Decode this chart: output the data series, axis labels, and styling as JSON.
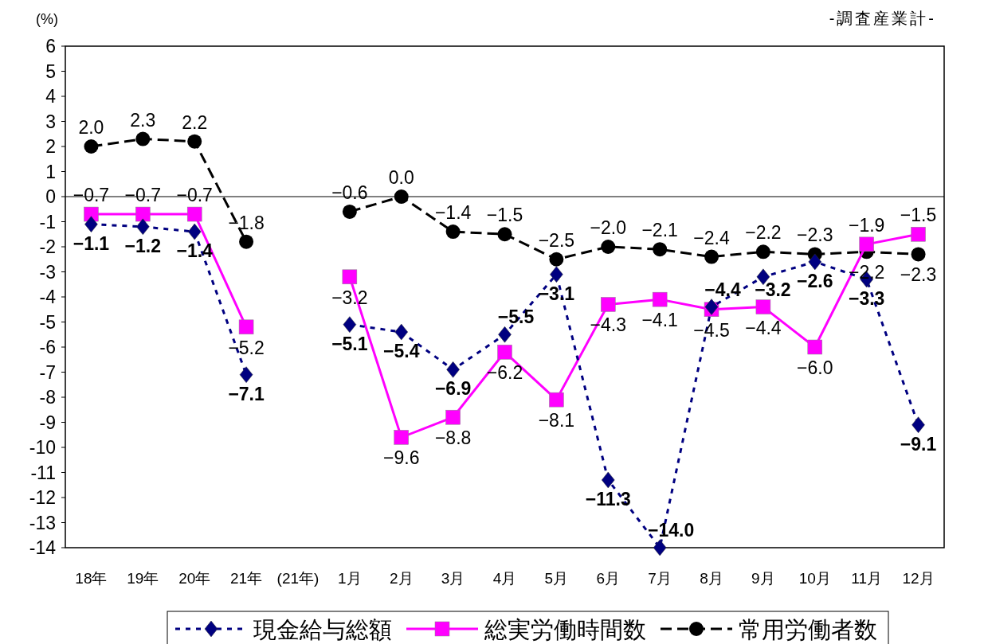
{
  "chart_data": {
    "type": "line",
    "title": "-調査産業計-",
    "ylabel": "(%)",
    "categories": [
      "18年",
      "19年",
      "20年",
      "21年",
      "(21年)",
      "1月",
      "2月",
      "3月",
      "4月",
      "5月",
      "6月",
      "7月",
      "8月",
      "9月",
      "10月",
      "11月",
      "12月"
    ],
    "series": [
      {
        "name": "現金給与総額",
        "color": "#000080",
        "marker": "diamond",
        "line_style": "dotted",
        "values": [
          -1.1,
          -1.2,
          -1.4,
          -7.1,
          null,
          -5.1,
          -5.4,
          -6.9,
          -5.5,
          -3.1,
          -11.3,
          -14.0,
          -4.4,
          -3.2,
          -2.6,
          -3.3,
          -9.1
        ],
        "value_labels": [
          "−1.1",
          "−1.2",
          "−1.4",
          "−7.1",
          null,
          "−5.1",
          "−5.4",
          "−6.9",
          "−5.5",
          "−3.1",
          "−11.3",
          "−14.0",
          "−4.4",
          "−3.2",
          "−2.6",
          "−3.3",
          "−9.1"
        ]
      },
      {
        "name": "総実労働時間数",
        "color": "#ff00ff",
        "marker": "square",
        "line_style": "solid",
        "values": [
          -0.7,
          -0.7,
          -0.7,
          -5.2,
          null,
          -3.2,
          -9.6,
          -8.8,
          -6.2,
          -8.1,
          -4.3,
          -4.1,
          -4.5,
          -4.4,
          -6.0,
          -1.9,
          -1.5
        ],
        "value_labels": [
          "−0.7",
          "−0.7",
          "−0.7",
          "−5.2",
          null,
          "−3.2",
          "−9.6",
          "−8.8",
          "−6.2",
          "−8.1",
          "−4.3",
          "−4.1",
          "−4.5",
          "−4.4",
          "−6.0",
          "−1.9",
          "−1.5"
        ]
      },
      {
        "name": "常用労働者数",
        "color": "#000000",
        "marker": "circle",
        "line_style": "dashed",
        "values": [
          2.0,
          2.3,
          2.2,
          -1.8,
          null,
          -0.6,
          0.0,
          -1.4,
          -1.5,
          -2.5,
          -2.0,
          -2.1,
          -2.4,
          -2.2,
          -2.3,
          -2.2,
          -2.3
        ],
        "value_labels": [
          "2.0",
          "2.3",
          "2.2",
          "−1.8",
          null,
          "−0.6",
          "0.0",
          "−1.4",
          "−1.5",
          "−2.5",
          "−2.0",
          "−2.1",
          "−2.4",
          "−2.2",
          "−2.3",
          "−2.2",
          "−2.3"
        ]
      }
    ],
    "ylim": [
      -14,
      6
    ],
    "yticks": [
      -14,
      -13,
      -12,
      -11,
      -10,
      -9,
      -8,
      -7,
      -6,
      -5,
      -4,
      -3,
      -2,
      -1,
      0,
      1,
      2,
      3,
      4,
      5,
      6
    ],
    "ref_lines": [
      {
        "axis": "y",
        "value": 0
      }
    ],
    "legend": "bottom"
  }
}
